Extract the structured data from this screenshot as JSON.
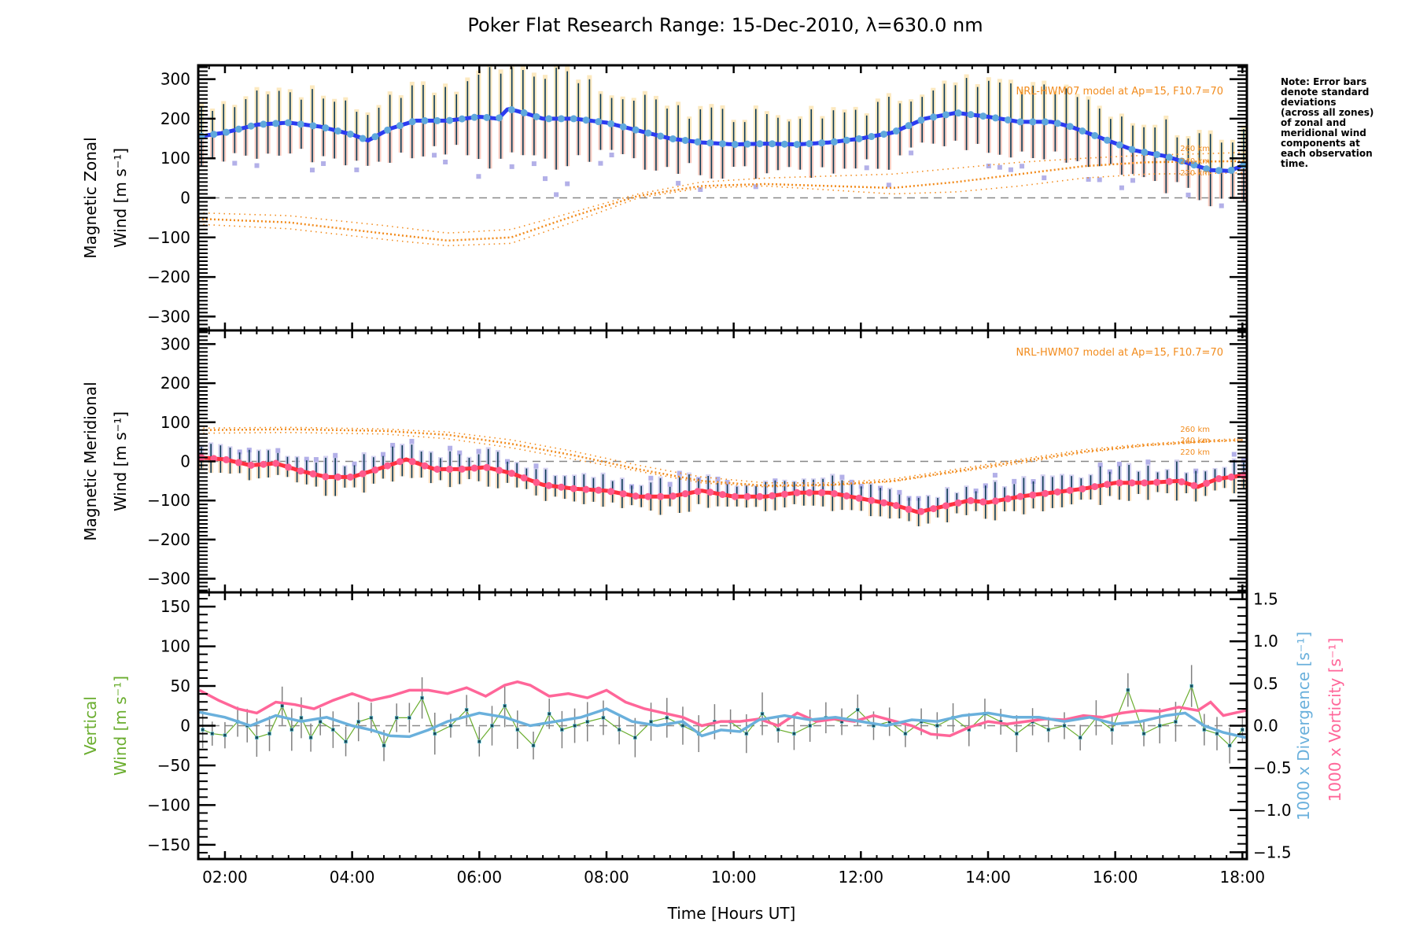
{
  "chart_data": {
    "type": "line",
    "title": "Poker Flat Research Range: 15-Dec-2010, λ=630.0 nm",
    "xlabel": "Time [Hours UT]",
    "x_ticks": [
      "02:00",
      "04:00",
      "06:00",
      "08:00",
      "10:00",
      "12:00",
      "14:00",
      "16:00",
      "18:00"
    ],
    "x_tick_hours": [
      2,
      4,
      6,
      8,
      10,
      12,
      14,
      16,
      18
    ],
    "xlim_hours": [
      1.58,
      18.07
    ],
    "note": [
      "Note: Error bars",
      "denote standard",
      "deviations",
      "(across all zones)",
      "of zonal and",
      "meridional wind",
      "components at",
      "each observation",
      "time."
    ],
    "colors": {
      "zonal_mean": "#2b3bf0",
      "zonal_marker": "#5fa8dc",
      "meridional_mean": "#ff3040",
      "meridional_marker": "#ff5a8c",
      "model": "#f28c1e",
      "vertical": "#6aad2e",
      "divergence": "#6ab0dc",
      "vorticity": "#ff6699",
      "errorbar": "#0a3a55",
      "zero_line": "#888888"
    },
    "panels": [
      {
        "name": "zonal",
        "ylabel_lines": [
          "Magnetic Zonal",
          "Wind [m s⁻¹]"
        ],
        "ylim": [
          -335,
          335
        ],
        "y_ticks": [
          300,
          200,
          100,
          0,
          -100,
          -200,
          -300
        ],
        "y_tick_labels": [
          "300",
          "200",
          "100",
          "0",
          "−100",
          "−200",
          "−300"
        ],
        "model_label": "NRL-HWM07 model at Ap=15, F10.7=70",
        "altitude_labels": [
          "260 km",
          "240 km",
          "220 km"
        ],
        "series": [
          {
            "name": "Mean zonal wind",
            "x": [
              1.6,
              2.0,
              2.5,
              3.0,
              3.5,
              4.0,
              4.25,
              4.6,
              5.0,
              5.5,
              6.0,
              6.3,
              6.45,
              6.7,
              7.0,
              7.5,
              8.0,
              8.5,
              9.0,
              9.5,
              10.0,
              10.5,
              11.0,
              11.5,
              12.0,
              12.5,
              13.0,
              13.5,
              14.0,
              14.5,
              15.0,
              15.3,
              15.8,
              16.3,
              16.8,
              17.2,
              17.5,
              17.8,
              18.05
            ],
            "y": [
              155,
              165,
              185,
              190,
              180,
              160,
              145,
              175,
              195,
              195,
              205,
              200,
              225,
              215,
              200,
              200,
              190,
              170,
              150,
              140,
              135,
              137,
              135,
              140,
              150,
              165,
              200,
              215,
              205,
              192,
              192,
              180,
              150,
              120,
              105,
              85,
              70,
              68,
              85
            ]
          },
          {
            "name": "Model 260 km",
            "x": [
              1.6,
              3.0,
              4.5,
              5.5,
              6.5,
              7.5,
              8.5,
              9.5,
              10.5,
              11.5,
              12.5,
              13.5,
              14.5,
              15.5,
              16.5,
              17.5,
              18.05
            ],
            "y": [
              -38,
              -45,
              -70,
              -89,
              -80,
              -35,
              10,
              40,
              50,
              55,
              60,
              75,
              90,
              100,
              108,
              112,
              115
            ]
          },
          {
            "name": "Model 240 km",
            "x": [
              1.6,
              3.0,
              4.5,
              5.5,
              6.5,
              7.5,
              8.5,
              9.5,
              10.5,
              11.5,
              12.5,
              13.5,
              14.5,
              15.5,
              16.5,
              17.5,
              18.05
            ],
            "y": [
              -53,
              -62,
              -90,
              -108,
              -100,
              -45,
              5,
              30,
              35,
              30,
              25,
              40,
              60,
              80,
              90,
              92,
              93
            ]
          },
          {
            "name": "Model 220 km",
            "x": [
              1.6,
              3.0,
              4.5,
              5.5,
              6.5,
              7.5,
              8.5,
              9.5,
              10.5,
              11.5,
              12.5,
              13.5,
              14.5,
              15.5,
              16.5,
              17.5,
              18.05
            ],
            "y": [
              -67,
              -78,
              -105,
              -121,
              -115,
              -60,
              0,
              25,
              30,
              20,
              10,
              15,
              30,
              50,
              60,
              62,
              63
            ]
          }
        ]
      },
      {
        "name": "meridional",
        "ylabel_lines": [
          "Magnetic Meridional",
          "Wind [m s⁻¹]"
        ],
        "ylim": [
          -335,
          335
        ],
        "y_ticks": [
          300,
          200,
          100,
          0,
          -100,
          -200,
          -300
        ],
        "y_tick_labels": [
          "300",
          "200",
          "100",
          "0",
          "−100",
          "−200",
          "−300"
        ],
        "model_label": "NRL-HWM07 model at Ap=15, F10.7=70",
        "altitude_labels": [
          "260 km",
          "240 km",
          "220 km"
        ],
        "series": [
          {
            "name": "Mean meridional wind",
            "x": [
              1.6,
              2.0,
              2.4,
              2.8,
              3.2,
              3.6,
              4.0,
              4.4,
              4.85,
              5.3,
              5.7,
              6.1,
              6.5,
              7.0,
              7.5,
              8.0,
              8.5,
              9.0,
              9.5,
              10.0,
              10.5,
              11.0,
              11.5,
              12.0,
              12.5,
              12.9,
              13.3,
              13.7,
              14.0,
              14.5,
              15.0,
              15.5,
              16.0,
              16.5,
              17.0,
              17.3,
              17.6,
              18.05
            ],
            "y": [
              10,
              5,
              -10,
              -5,
              -25,
              -40,
              -40,
              -20,
              5,
              -20,
              -20,
              -15,
              -30,
              -60,
              -70,
              -75,
              -90,
              -90,
              -75,
              -90,
              -90,
              -80,
              -80,
              -95,
              -110,
              -130,
              -115,
              -100,
              -105,
              -90,
              -80,
              -70,
              -55,
              -55,
              -50,
              -65,
              -45,
              -35
            ]
          },
          {
            "name": "Model 260 km",
            "x": [
              1.6,
              3.0,
              4.5,
              5.5,
              6.5,
              7.5,
              8.5,
              9.5,
              10.5,
              11.5,
              12.5,
              13.5,
              14.5,
              15.5,
              16.5,
              17.5,
              18.05
            ],
            "y": [
              85,
              87,
              83,
              75,
              55,
              25,
              -10,
              -40,
              -55,
              -55,
              -45,
              -20,
              5,
              30,
              45,
              55,
              58
            ]
          },
          {
            "name": "Model 240 km",
            "x": [
              1.6,
              3.0,
              4.5,
              5.5,
              6.5,
              7.5,
              8.5,
              9.5,
              10.5,
              11.5,
              12.5,
              13.5,
              14.5,
              15.5,
              16.5,
              17.5,
              18.05
            ],
            "y": [
              80,
              82,
              78,
              68,
              45,
              15,
              -20,
              -50,
              -62,
              -60,
              -50,
              -25,
              0,
              25,
              42,
              52,
              55
            ]
          },
          {
            "name": "Model 220 km",
            "x": [
              1.6,
              3.0,
              4.5,
              5.5,
              6.5,
              7.5,
              8.5,
              9.5,
              10.5,
              11.5,
              12.5,
              13.5,
              14.5,
              15.5,
              16.5,
              17.5,
              18.05
            ],
            "y": [
              72,
              74,
              70,
              58,
              35,
              5,
              -25,
              -55,
              -65,
              -62,
              -52,
              -28,
              -5,
              22,
              40,
              50,
              53
            ]
          }
        ]
      },
      {
        "name": "vertical",
        "ylabel_lines": [
          "Vertical",
          "Wind [m s⁻¹]"
        ],
        "ylim": [
          -168,
          168
        ],
        "y_ticks": [
          150,
          100,
          50,
          0,
          -50,
          -100,
          -150
        ],
        "y_tick_labels": [
          "150",
          "100",
          "50",
          "0",
          "−50",
          "−100",
          "−150"
        ],
        "right_ylim": [
          -1.58,
          1.58
        ],
        "right_y_ticks": [
          1.5,
          1.0,
          0.5,
          0.0,
          -0.5,
          -1.0,
          -1.5
        ],
        "right_y_tick_labels": [
          "1.5",
          "1.0",
          "0.5",
          "0.0",
          "−0.5",
          "−1.0",
          "−1.5"
        ],
        "right_labels": [
          "1000 x Divergence [s⁻¹]",
          "1000 x Vorticity [s⁻¹]"
        ],
        "series": [
          {
            "name": "Vertical wind",
            "axis": "left",
            "x": [
              1.65,
              1.8,
              2.0,
              2.2,
              2.35,
              2.5,
              2.7,
              2.9,
              3.05,
              3.2,
              3.35,
              3.5,
              3.7,
              3.9,
              4.1,
              4.3,
              4.5,
              4.7,
              4.9,
              5.1,
              5.3,
              5.55,
              5.8,
              6.0,
              6.2,
              6.4,
              6.6,
              6.85,
              7.1,
              7.3,
              7.5,
              7.7,
              7.95,
              8.2,
              8.45,
              8.7,
              8.95,
              9.2,
              9.45,
              9.7,
              9.95,
              10.2,
              10.45,
              10.7,
              10.95,
              11.2,
              11.45,
              11.7,
              11.95,
              12.2,
              12.45,
              12.7,
              12.95,
              13.2,
              13.45,
              13.7,
              13.95,
              14.2,
              14.45,
              14.7,
              14.95,
              15.2,
              15.45,
              15.7,
              15.95,
              16.2,
              16.45,
              16.7,
              16.95,
              17.2,
              17.4,
              17.6,
              17.8,
              18.0
            ],
            "y": [
              -5,
              -10,
              -12,
              5,
              0,
              -15,
              -10,
              25,
              -5,
              10,
              -15,
              5,
              -5,
              -20,
              5,
              10,
              -25,
              10,
              10,
              35,
              -10,
              0,
              20,
              -20,
              0,
              25,
              -5,
              -25,
              15,
              -5,
              0,
              5,
              10,
              -5,
              -15,
              5,
              10,
              0,
              -10,
              5,
              5,
              -10,
              15,
              -5,
              -10,
              0,
              10,
              5,
              20,
              0,
              5,
              -10,
              5,
              0,
              10,
              -5,
              15,
              5,
              -10,
              5,
              -5,
              0,
              -15,
              10,
              -5,
              45,
              -10,
              0,
              5,
              50,
              -5,
              -10,
              -25,
              -5
            ]
          },
          {
            "name": "1000 x Divergence",
            "axis": "right",
            "x": [
              1.6,
              2.0,
              2.4,
              2.8,
              3.2,
              3.6,
              4.0,
              4.3,
              4.6,
              4.9,
              5.2,
              5.5,
              6.0,
              6.4,
              6.8,
              7.2,
              7.6,
              8.0,
              8.4,
              8.8,
              9.2,
              9.5,
              9.8,
              10.1,
              10.4,
              10.8,
              11.2,
              11.6,
              12.0,
              12.4,
              12.8,
              13.2,
              13.6,
              14.0,
              14.4,
              14.8,
              15.2,
              15.6,
              16.0,
              16.4,
              16.8,
              17.1,
              17.4,
              17.7,
              18.05
            ],
            "y": [
              0.16,
              0.1,
              0.0,
              0.12,
              0.05,
              0.1,
              0.0,
              -0.05,
              -0.12,
              -0.13,
              -0.05,
              0.05,
              0.15,
              0.1,
              0.0,
              0.05,
              0.1,
              0.2,
              0.05,
              0.0,
              0.05,
              -0.12,
              -0.05,
              -0.07,
              0.07,
              0.12,
              0.07,
              0.1,
              0.05,
              0.0,
              0.07,
              0.05,
              0.12,
              0.15,
              0.1,
              0.1,
              0.05,
              0.1,
              0.02,
              0.05,
              0.12,
              0.15,
              0.0,
              -0.08,
              -0.14
            ]
          },
          {
            "name": "1000 x Vorticity",
            "axis": "right",
            "x": [
              1.6,
              1.9,
              2.2,
              2.5,
              2.8,
              3.1,
              3.4,
              3.7,
              4.0,
              4.3,
              4.6,
              4.9,
              5.2,
              5.5,
              5.8,
              6.1,
              6.4,
              6.6,
              6.8,
              7.1,
              7.4,
              7.7,
              8.0,
              8.3,
              8.6,
              8.9,
              9.2,
              9.5,
              9.8,
              10.1,
              10.4,
              10.7,
              11.0,
              11.3,
              11.6,
              11.9,
              12.2,
              12.5,
              12.8,
              13.1,
              13.4,
              13.7,
              14.0,
              14.3,
              14.6,
              14.9,
              15.2,
              15.5,
              15.8,
              16.1,
              16.4,
              16.7,
              17.0,
              17.3,
              17.5,
              17.7,
              18.05
            ],
            "y": [
              0.42,
              0.3,
              0.2,
              0.15,
              0.28,
              0.25,
              0.2,
              0.3,
              0.38,
              0.3,
              0.35,
              0.42,
              0.42,
              0.38,
              0.45,
              0.35,
              0.48,
              0.52,
              0.48,
              0.35,
              0.38,
              0.33,
              0.42,
              0.28,
              0.2,
              0.15,
              0.1,
              0.0,
              0.05,
              0.05,
              0.08,
              0.0,
              0.15,
              0.05,
              0.08,
              0.05,
              0.12,
              0.06,
              0.0,
              -0.1,
              -0.12,
              -0.02,
              0.05,
              0.02,
              0.05,
              0.08,
              0.07,
              0.12,
              0.1,
              0.15,
              0.18,
              0.17,
              0.22,
              0.18,
              0.28,
              0.12,
              0.18
            ]
          }
        ]
      }
    ]
  }
}
